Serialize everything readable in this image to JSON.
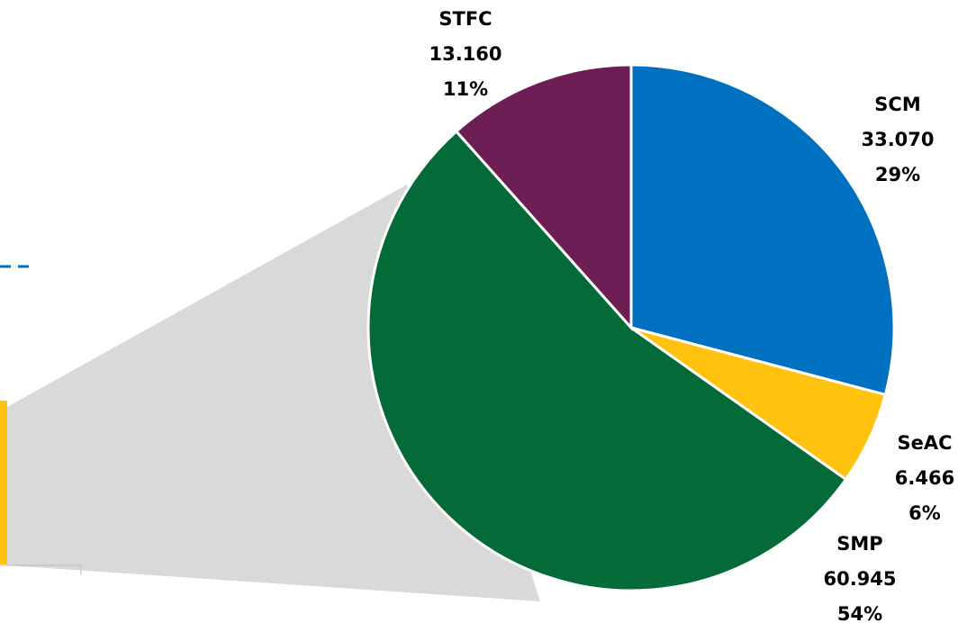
{
  "chart_data": {
    "type": "pie",
    "categories": [
      "SCM",
      "SeAC",
      "SMP",
      "STFC"
    ],
    "values": [
      33.07,
      6.466,
      60.945,
      13.16
    ],
    "value_labels": [
      "33.070",
      "6.466",
      "60.945",
      "13.160"
    ],
    "percent_values": [
      29,
      6,
      54,
      11
    ],
    "percent_labels": [
      "29%",
      "6%",
      "54%",
      "11%"
    ],
    "colors": [
      "#0070c0",
      "#ffc20e",
      "#046a38",
      "#6d1e55"
    ]
  }
}
